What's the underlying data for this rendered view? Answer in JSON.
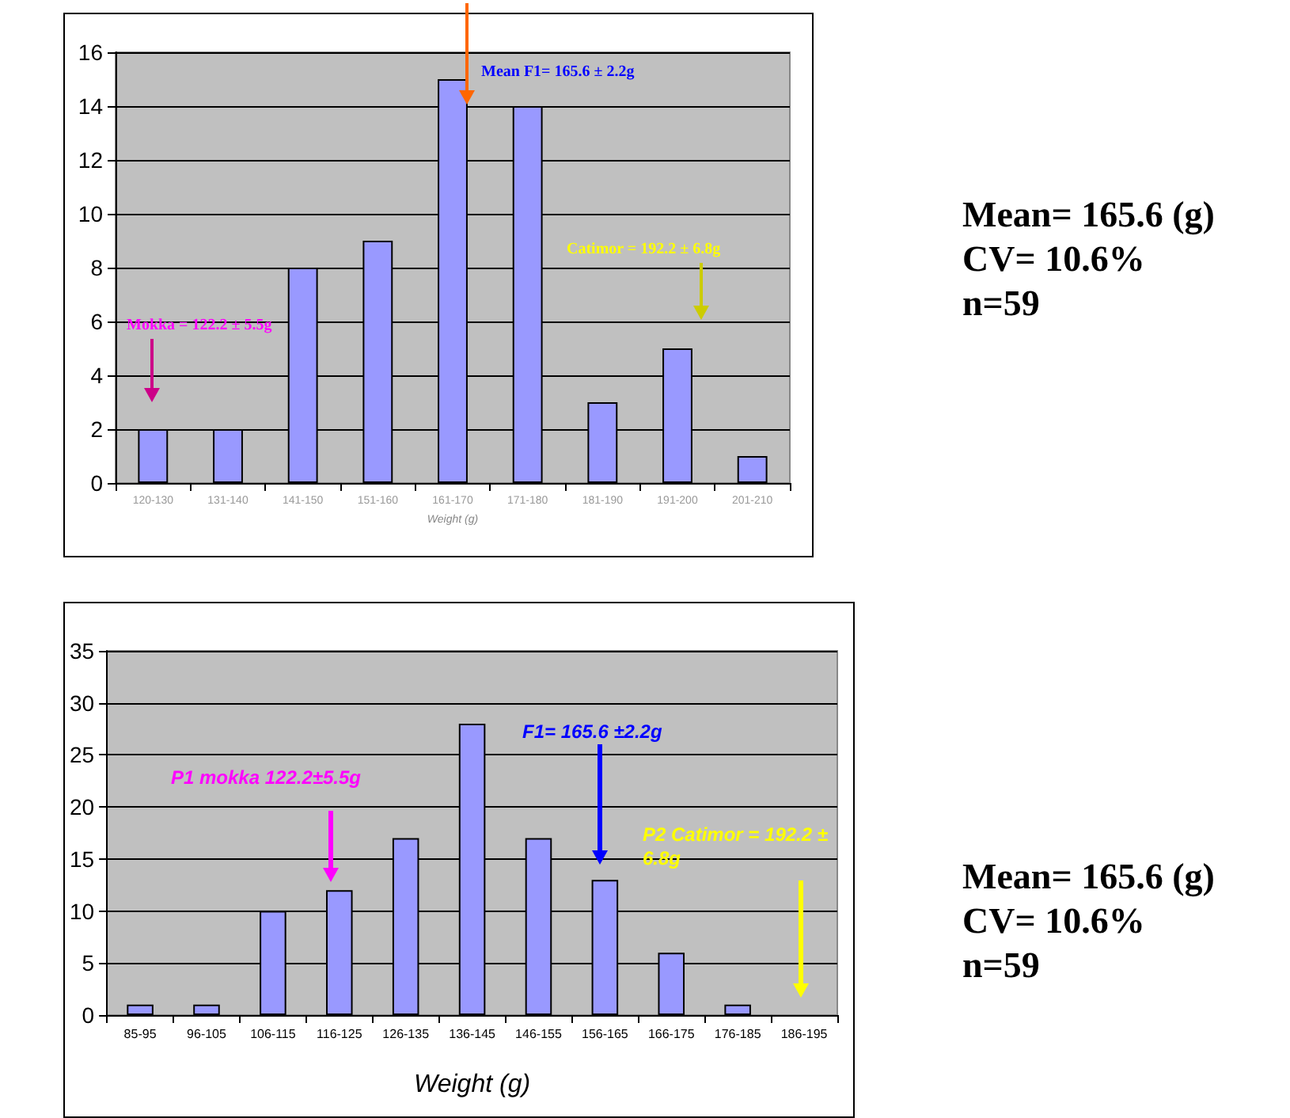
{
  "chart_data": [
    {
      "type": "bar",
      "xlabel": "Weight (g)",
      "categories": [
        "120-130",
        "131-140",
        "141-150",
        "151-160",
        "161-170",
        "171-180",
        "181-190",
        "191-200",
        "201-210"
      ],
      "values": [
        2,
        2,
        8,
        9,
        15,
        14,
        3,
        5,
        1
      ],
      "color": "#9999ff",
      "ylim": [
        0,
        16
      ],
      "yticks": [
        0,
        2,
        4,
        6,
        8,
        10,
        12,
        14,
        16
      ],
      "grid": "y",
      "annotations": [
        "Mokka = 122.2 ± 5.5g",
        "Mean F1= 165.6 ± 2.2g",
        "Catimor = 192.2 ± 6.8g",
        "Mean= 165.6 (g)",
        "CV= 10.6%",
        "n=59"
      ]
    },
    {
      "type": "bar",
      "xlabel": "Weight (g)",
      "categories": [
        "85-95",
        "96-105",
        "106-115",
        "116-125",
        "126-135",
        "136-145",
        "146-155",
        "156-165",
        "166-175",
        "176-185",
        "186-195"
      ],
      "values": [
        1,
        1,
        10,
        12,
        17,
        28,
        17,
        13,
        6,
        1,
        null
      ],
      "color": "#9999ff",
      "ylim": [
        0,
        35
      ],
      "yticks": [
        0,
        5,
        10,
        15,
        20,
        25,
        30,
        35
      ],
      "grid": "y",
      "annotations": [
        "P1 mokka  122.2±5.5g",
        "F1= 165.6  ±2.2g",
        "P2 Catimor = 192.2 ± 6.8g",
        "Mean= 165.6 (g)",
        "CV= 10.6%",
        "n=59"
      ]
    }
  ]
}
